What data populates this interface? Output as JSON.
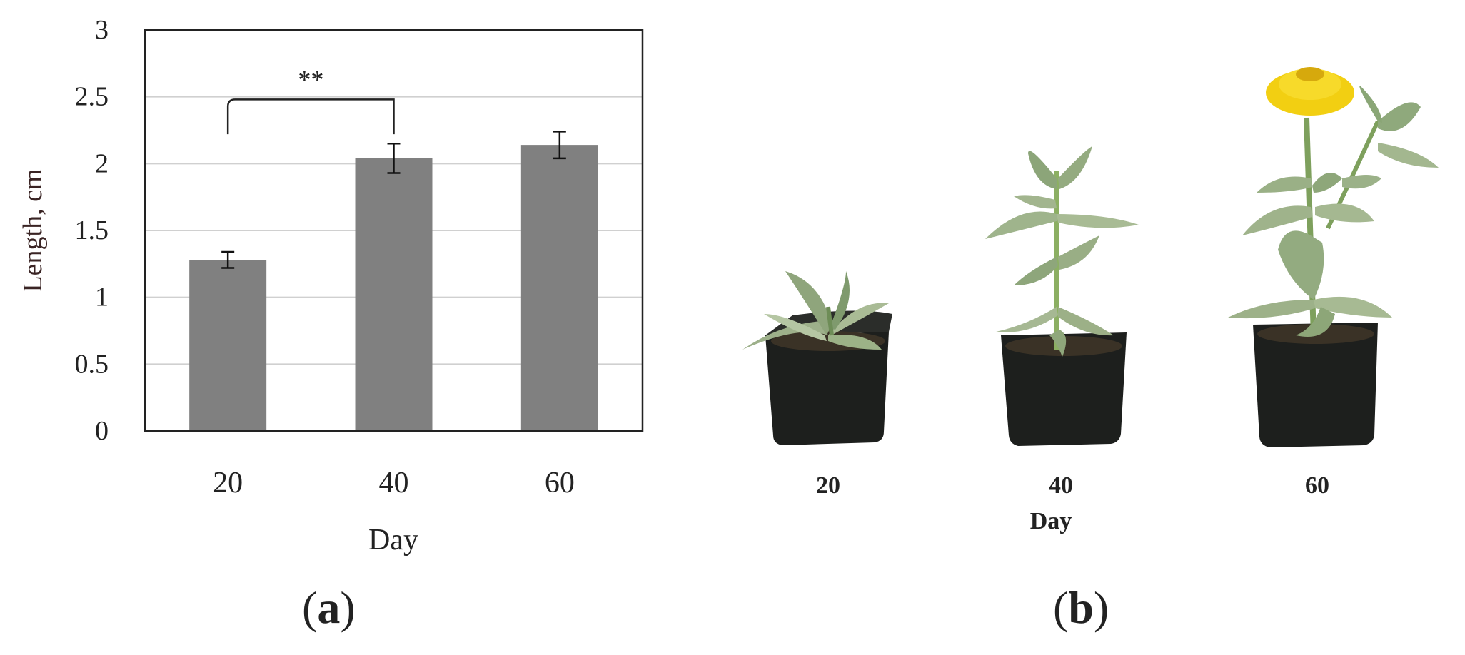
{
  "panel_a": {
    "label_open": "(",
    "label_letter": "a",
    "label_close": ")"
  },
  "panel_b": {
    "label_open": "(",
    "label_letter": "b",
    "label_close": ")",
    "pot_labels": [
      "20",
      "40",
      "60"
    ],
    "xlabel": "Day"
  },
  "chart_data": {
    "type": "bar",
    "categories": [
      "20",
      "40",
      "60"
    ],
    "values": [
      1.28,
      2.04,
      2.14
    ],
    "errors": [
      0.06,
      0.11,
      0.1
    ],
    "xlabel": "Day",
    "ylabel": "Length, cm",
    "ylim": [
      0,
      3
    ],
    "yticks": [
      "0",
      "0.5",
      "1",
      "1.5",
      "2",
      "2.5",
      "3"
    ],
    "grid": true,
    "bar_color": "#808080",
    "annotation": {
      "text": "**",
      "between": [
        "20",
        "40"
      ]
    }
  }
}
